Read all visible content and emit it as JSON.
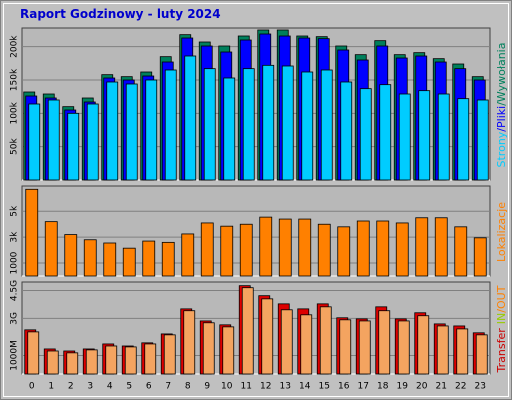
{
  "title": "Raport Godzinowy -  luty 2024",
  "chart_data": [
    {
      "type": "bar",
      "legend_separator": "/",
      "series": [
        {
          "name": "Wywołania",
          "color": "#00805c",
          "values": [
            132000,
            129000,
            110000,
            123000,
            158000,
            155000,
            162000,
            185000,
            218000,
            207000,
            201000,
            216000,
            225000,
            225000,
            216000,
            215000,
            201000,
            188000,
            209000,
            188000,
            191000,
            182000,
            174000,
            155000
          ]
        },
        {
          "name": "Pliki",
          "color": "#0000ff",
          "values": [
            126000,
            123000,
            105000,
            117000,
            153000,
            150000,
            156000,
            177000,
            213000,
            201000,
            192000,
            210000,
            219000,
            216000,
            213000,
            212000,
            195000,
            180000,
            201000,
            183000,
            186000,
            177000,
            167000,
            150000
          ]
        },
        {
          "name": "Strony",
          "color": "#00ccff",
          "values": [
            114000,
            120000,
            100000,
            114000,
            147000,
            144000,
            150000,
            165000,
            186000,
            167000,
            153000,
            167000,
            172000,
            171000,
            162000,
            165000,
            147000,
            137000,
            143000,
            129000,
            134000,
            129000,
            122000,
            120000
          ]
        }
      ],
      "ylim": [
        0,
        225000
      ],
      "yticks": [
        {
          "value": 50000,
          "label": "50k"
        },
        {
          "value": 100000,
          "label": "100k"
        },
        {
          "value": 150000,
          "label": "150k"
        },
        {
          "value": 200000,
          "label": "200k"
        }
      ],
      "grid": true
    },
    {
      "type": "bar",
      "series": [
        {
          "name": "Lokalizacje",
          "color": "#ff8000",
          "values": [
            6700,
            4200,
            3200,
            2800,
            2550,
            2150,
            2700,
            2600,
            3250,
            4100,
            3850,
            4000,
            4550,
            4400,
            4400,
            4000,
            3800,
            4250,
            4250,
            4100,
            4500,
            4500,
            3800,
            2950
          ]
        }
      ],
      "ylim": [
        0,
        6800
      ],
      "yticks": [
        {
          "value": 1000,
          "label": "1000"
        },
        {
          "value": 3000,
          "label": "3k"
        },
        {
          "value": 5000,
          "label": "5k"
        }
      ],
      "grid": true
    },
    {
      "type": "bar",
      "legend_title": "Transfer",
      "legend_title_color": "#cc0000",
      "legend_separator": "/",
      "categories": [
        "0",
        "1",
        "2",
        "3",
        "4",
        "5",
        "6",
        "7",
        "8",
        "9",
        "10",
        "11",
        "12",
        "13",
        "14",
        "15",
        "16",
        "17",
        "18",
        "19",
        "20",
        "21",
        "22",
        "23"
      ],
      "series": [
        {
          "name": "IN",
          "color": "#dd0000",
          "label_color": "#99cc00",
          "values": [
            2.38,
            1.35,
            1.24,
            1.35,
            1.62,
            1.51,
            1.68,
            2.16,
            3.51,
            2.86,
            2.65,
            4.76,
            4.22,
            3.78,
            3.51,
            3.78,
            3.03,
            2.97,
            3.62,
            2.97,
            3.3,
            2.7,
            2.59,
            2.22
          ]
        },
        {
          "name": "OUT",
          "color": "#f4a460",
          "label_color": "#ff8000",
          "values": [
            2.27,
            1.24,
            1.14,
            1.3,
            1.51,
            1.46,
            1.62,
            2.11,
            3.41,
            2.76,
            2.54,
            4.65,
            4.05,
            3.46,
            3.19,
            3.62,
            2.92,
            2.86,
            3.41,
            2.86,
            3.14,
            2.59,
            2.43,
            2.11
          ]
        }
      ],
      "ylim": [
        0,
        4.85
      ],
      "yticks": [
        {
          "value": 1,
          "label": "1000M"
        },
        {
          "value": 3,
          "label": "3G"
        },
        {
          "value": 4.5,
          "label": "4.5G"
        }
      ],
      "grid": true
    }
  ]
}
